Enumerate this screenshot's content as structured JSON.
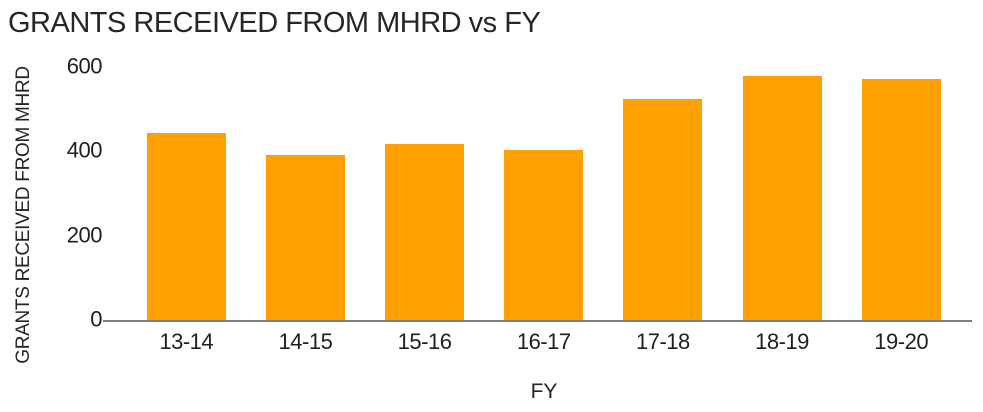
{
  "chart_data": {
    "type": "bar",
    "title": "GRANTS RECEIVED FROM MHRD vs FY",
    "xlabel": "FY",
    "ylabel": "GRANTS RECEIVED FROM MHRD",
    "categories": [
      "13-14",
      "14-15",
      "15-16",
      "16-17",
      "17-18",
      "18-19",
      "19-20"
    ],
    "values": [
      444,
      390,
      416,
      404,
      524,
      578,
      572
    ],
    "yticks": [
      0,
      200,
      400,
      600
    ],
    "ylim": [
      0,
      600
    ],
    "grid": false,
    "legend": false,
    "colors": {
      "bar": "#ffa000",
      "axis_line": "#7f7f7f",
      "text": "#262626",
      "tick_text": "#1f1f1f",
      "background": "#ffffff"
    }
  }
}
